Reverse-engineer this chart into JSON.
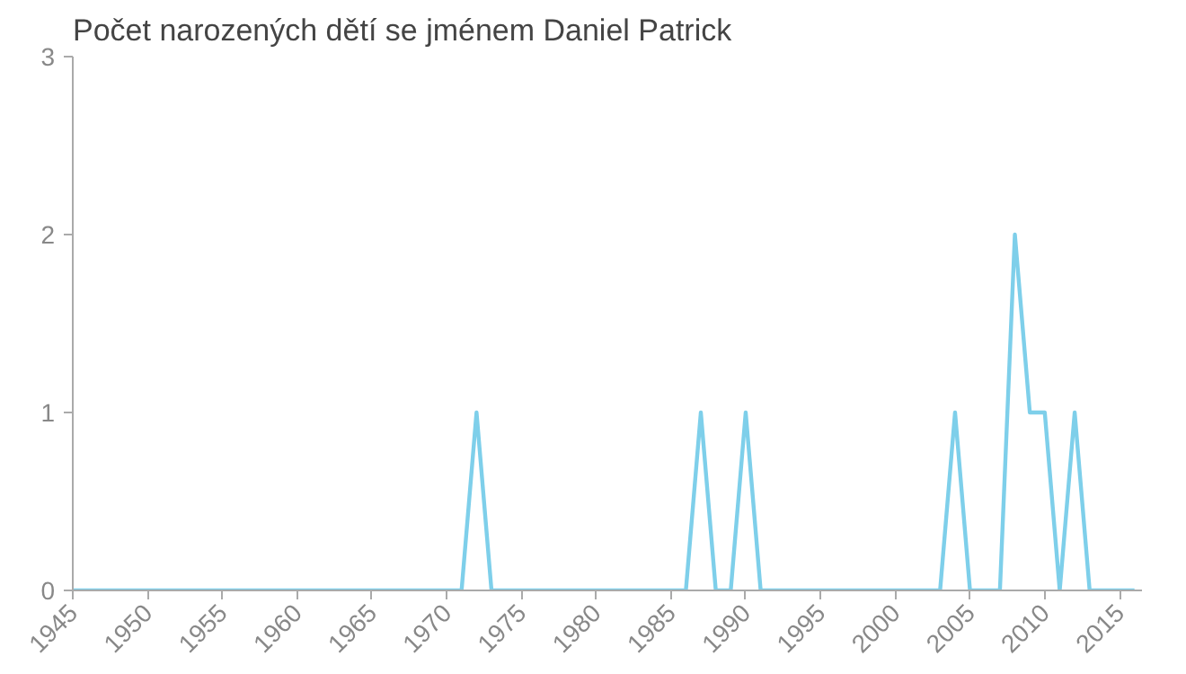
{
  "chart_data": {
    "type": "line",
    "title": "Počet narozených dětí se jménem Daniel Patrick",
    "x": [
      1945,
      1946,
      1947,
      1948,
      1949,
      1950,
      1951,
      1952,
      1953,
      1954,
      1955,
      1956,
      1957,
      1958,
      1959,
      1960,
      1961,
      1962,
      1963,
      1964,
      1965,
      1966,
      1967,
      1968,
      1969,
      1970,
      1971,
      1972,
      1973,
      1974,
      1975,
      1976,
      1977,
      1978,
      1979,
      1980,
      1981,
      1982,
      1983,
      1984,
      1985,
      1986,
      1987,
      1988,
      1989,
      1990,
      1991,
      1992,
      1993,
      1994,
      1995,
      1996,
      1997,
      1998,
      1999,
      2000,
      2001,
      2002,
      2003,
      2004,
      2005,
      2006,
      2007,
      2008,
      2009,
      2010,
      2011,
      2012,
      2013,
      2014,
      2015,
      2016
    ],
    "series": [
      {
        "color": "#7ecfea",
        "values": [
          0,
          0,
          0,
          0,
          0,
          0,
          0,
          0,
          0,
          0,
          0,
          0,
          0,
          0,
          0,
          0,
          0,
          0,
          0,
          0,
          0,
          0,
          0,
          0,
          0,
          0,
          0,
          1,
          0,
          0,
          0,
          0,
          0,
          0,
          0,
          0,
          0,
          0,
          0,
          0,
          0,
          0,
          1,
          0,
          0,
          1,
          0,
          0,
          0,
          0,
          0,
          0,
          0,
          0,
          0,
          0,
          0,
          0,
          0,
          1,
          0,
          0,
          0,
          2,
          1,
          1,
          0,
          1,
          0,
          0,
          0,
          0
        ]
      }
    ],
    "xlim": [
      1945,
      2016.5
    ],
    "xticks": [
      1945,
      1950,
      1955,
      1960,
      1965,
      1970,
      1975,
      1980,
      1985,
      1990,
      1995,
      2000,
      2005,
      2010,
      2015
    ],
    "ylim": [
      0,
      3
    ],
    "yticks": [
      0,
      1,
      2,
      3
    ],
    "grid": false
  }
}
